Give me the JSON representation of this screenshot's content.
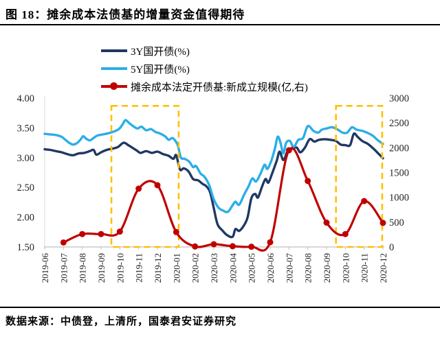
{
  "header": {
    "title": "图 18：摊余成本法债基的增量资金值得期待"
  },
  "footer": {
    "source": "数据来源：中债登，上清所，国泰君安证券研究"
  },
  "colors": {
    "navy": "#1F3864",
    "light_blue": "#2BAEE8",
    "red": "#C00000",
    "gold": "#FFC000",
    "axis_gray": "#BFBFBF",
    "label_color": "#222222"
  },
  "legend": [
    {
      "label": "3Y国开债(%)",
      "color": "#1F3864",
      "marker": false
    },
    {
      "label": "5Y国开债(%)",
      "color": "#2BAEE8",
      "marker": false
    },
    {
      "label": "摊余成本法定开债基:新成立规模(亿,右)",
      "color": "#C00000",
      "marker": true
    }
  ],
  "chart_data": {
    "type": "line",
    "title": "图 18：摊余成本法债基的增量资金值得期待",
    "grid": false,
    "legend_position": "top-left-inside",
    "x_categories": [
      "2019-06",
      "2019-07",
      "2019-08",
      "2019-09",
      "2019-10",
      "2019-11",
      "2019-12",
      "2020-01",
      "2020-02",
      "2020-03",
      "2020-04",
      "2020-05",
      "2020-06",
      "2020-07",
      "2020-08",
      "2020-09",
      "2020-10",
      "2020-11",
      "2020-12"
    ],
    "left_axis": {
      "tick_labels": [
        "4.00",
        "3.50",
        "3.00",
        "2.50",
        "2.00",
        "1.50"
      ],
      "tick_values": [
        4.0,
        3.5,
        3.0,
        2.5,
        2.0,
        1.5
      ],
      "range": [
        1.5,
        4.0
      ]
    },
    "right_axis": {
      "tick_labels": [
        "3000",
        "2500",
        "2000",
        "1500",
        "1000",
        "500",
        "0"
      ],
      "tick_values": [
        3000,
        2500,
        2000,
        1500,
        1000,
        500,
        0
      ],
      "range": [
        0,
        3000
      ]
    },
    "series": [
      {
        "name": "3Y国开债(%)",
        "axis": "left",
        "color": "#1F3864",
        "width": 3.4,
        "marker": false,
        "points": [
          [
            0,
            3.14
          ],
          [
            0.3,
            3.13
          ],
          [
            0.6,
            3.11
          ],
          [
            0.9,
            3.09
          ],
          [
            1.2,
            3.06
          ],
          [
            1.5,
            3.04
          ],
          [
            1.8,
            3.07
          ],
          [
            2.1,
            3.08
          ],
          [
            2.4,
            3.11
          ],
          [
            2.6,
            3.13
          ],
          [
            2.75,
            3.05
          ],
          [
            3.0,
            3.09
          ],
          [
            3.3,
            3.13
          ],
          [
            3.6,
            3.15
          ],
          [
            3.9,
            3.18
          ],
          [
            4.2,
            3.25
          ],
          [
            4.45,
            3.21
          ],
          [
            4.7,
            3.16
          ],
          [
            4.9,
            3.12
          ],
          [
            5.1,
            3.08
          ],
          [
            5.4,
            3.11
          ],
          [
            5.7,
            3.08
          ],
          [
            6.0,
            3.1
          ],
          [
            6.3,
            3.06
          ],
          [
            6.6,
            3.03
          ],
          [
            6.85,
            2.98
          ],
          [
            7.0,
            3.04
          ],
          [
            7.2,
            2.8
          ],
          [
            7.4,
            2.82
          ],
          [
            7.65,
            2.77
          ],
          [
            7.9,
            2.64
          ],
          [
            8.15,
            2.62
          ],
          [
            8.4,
            2.56
          ],
          [
            8.6,
            2.52
          ],
          [
            8.8,
            2.42
          ],
          [
            9.0,
            2.15
          ],
          [
            9.2,
            1.88
          ],
          [
            9.45,
            1.78
          ],
          [
            9.7,
            1.7
          ],
          [
            10.0,
            1.67
          ],
          [
            10.15,
            1.8
          ],
          [
            10.35,
            1.77
          ],
          [
            10.6,
            1.86
          ],
          [
            10.8,
            2.0
          ],
          [
            11.0,
            2.32
          ],
          [
            11.2,
            2.39
          ],
          [
            11.35,
            2.33
          ],
          [
            11.55,
            2.5
          ],
          [
            11.75,
            2.64
          ],
          [
            11.9,
            2.58
          ],
          [
            12.1,
            2.73
          ],
          [
            12.35,
            2.95
          ],
          [
            12.5,
            3.1
          ],
          [
            12.7,
            2.96
          ],
          [
            12.9,
            3.09
          ],
          [
            13.1,
            3.14
          ],
          [
            13.4,
            3.17
          ],
          [
            13.6,
            3.09
          ],
          [
            13.85,
            3.17
          ],
          [
            14.1,
            3.31
          ],
          [
            14.35,
            3.27
          ],
          [
            14.6,
            3.3
          ],
          [
            14.9,
            3.31
          ],
          [
            15.2,
            3.3
          ],
          [
            15.5,
            3.28
          ],
          [
            15.75,
            3.22
          ],
          [
            16.0,
            3.21
          ],
          [
            16.25,
            3.21
          ],
          [
            16.45,
            3.4
          ],
          [
            16.65,
            3.35
          ],
          [
            16.9,
            3.28
          ],
          [
            17.2,
            3.23
          ],
          [
            17.5,
            3.15
          ],
          [
            17.75,
            3.07
          ],
          [
            18.0,
            2.99
          ]
        ]
      },
      {
        "name": "5Y国开债(%)",
        "axis": "left",
        "color": "#2BAEE8",
        "width": 3.4,
        "marker": false,
        "points": [
          [
            0,
            3.4
          ],
          [
            0.3,
            3.39
          ],
          [
            0.6,
            3.38
          ],
          [
            0.9,
            3.35
          ],
          [
            1.1,
            3.3
          ],
          [
            1.3,
            3.25
          ],
          [
            1.5,
            3.22
          ],
          [
            1.7,
            3.24
          ],
          [
            1.9,
            3.3
          ],
          [
            2.05,
            3.36
          ],
          [
            2.2,
            3.32
          ],
          [
            2.4,
            3.29
          ],
          [
            2.6,
            3.33
          ],
          [
            2.8,
            3.37
          ],
          [
            3.1,
            3.39
          ],
          [
            3.4,
            3.41
          ],
          [
            3.7,
            3.44
          ],
          [
            3.95,
            3.48
          ],
          [
            4.15,
            3.56
          ],
          [
            4.3,
            3.63
          ],
          [
            4.5,
            3.58
          ],
          [
            4.75,
            3.52
          ],
          [
            4.95,
            3.49
          ],
          [
            5.15,
            3.52
          ],
          [
            5.4,
            3.46
          ],
          [
            5.65,
            3.48
          ],
          [
            5.9,
            3.43
          ],
          [
            6.1,
            3.41
          ],
          [
            6.4,
            3.36
          ],
          [
            6.6,
            3.3
          ],
          [
            6.8,
            3.33
          ],
          [
            7.0,
            3.26
          ],
          [
            7.1,
            3.19
          ],
          [
            7.25,
            3.0
          ],
          [
            7.45,
            2.98
          ],
          [
            7.7,
            2.93
          ],
          [
            7.9,
            2.84
          ],
          [
            8.05,
            2.86
          ],
          [
            8.3,
            2.73
          ],
          [
            8.5,
            2.68
          ],
          [
            8.75,
            2.54
          ],
          [
            9.0,
            2.3
          ],
          [
            9.25,
            2.16
          ],
          [
            9.5,
            2.11
          ],
          [
            9.75,
            2.09
          ],
          [
            10.0,
            2.2
          ],
          [
            10.15,
            2.26
          ],
          [
            10.35,
            2.21
          ],
          [
            10.6,
            2.37
          ],
          [
            10.85,
            2.52
          ],
          [
            11.05,
            2.65
          ],
          [
            11.25,
            2.6
          ],
          [
            11.5,
            2.74
          ],
          [
            11.7,
            2.88
          ],
          [
            11.85,
            2.81
          ],
          [
            12.05,
            2.94
          ],
          [
            12.25,
            3.15
          ],
          [
            12.4,
            3.35
          ],
          [
            12.55,
            3.25
          ],
          [
            12.7,
            3.07
          ],
          [
            12.85,
            3.25
          ],
          [
            13.05,
            3.28
          ],
          [
            13.25,
            3.18
          ],
          [
            13.5,
            3.3
          ],
          [
            13.75,
            3.33
          ],
          [
            14.0,
            3.53
          ],
          [
            14.3,
            3.45
          ],
          [
            14.55,
            3.42
          ],
          [
            14.75,
            3.47
          ],
          [
            15.0,
            3.49
          ],
          [
            15.3,
            3.51
          ],
          [
            15.6,
            3.47
          ],
          [
            15.85,
            3.42
          ],
          [
            16.1,
            3.42
          ],
          [
            16.35,
            3.51
          ],
          [
            16.6,
            3.47
          ],
          [
            16.9,
            3.45
          ],
          [
            17.15,
            3.42
          ],
          [
            17.45,
            3.37
          ],
          [
            17.7,
            3.3
          ],
          [
            18.0,
            3.23
          ]
        ]
      },
      {
        "name": "摊余成本法定开债基:新成立规模(亿,右)",
        "axis": "right",
        "color": "#C00000",
        "width": 3.2,
        "marker": true,
        "marker_radius": 4.5,
        "points": [
          [
            1,
            90
          ],
          [
            2,
            260
          ],
          [
            3,
            260
          ],
          [
            4,
            310
          ],
          [
            5,
            1175
          ],
          [
            6,
            1245
          ],
          [
            7,
            300
          ],
          [
            8,
            10
          ],
          [
            9,
            55
          ],
          [
            10,
            15
          ],
          [
            11,
            5
          ],
          [
            12,
            95
          ],
          [
            13,
            1950
          ],
          [
            14,
            1330
          ],
          [
            15,
            490
          ],
          [
            16,
            260
          ],
          [
            17,
            925
          ],
          [
            18,
            485
          ]
        ]
      }
    ],
    "highlight_boxes": [
      {
        "x0": 3.55,
        "x1": 7.13,
        "top_left_value": 3.87,
        "bottom_left_value": 1.5,
        "color": "#FFC000"
      },
      {
        "x0": 15.5,
        "x1": 17.96,
        "top_left_value": 3.87,
        "bottom_left_value": 1.5,
        "color": "#FFC000"
      }
    ]
  }
}
